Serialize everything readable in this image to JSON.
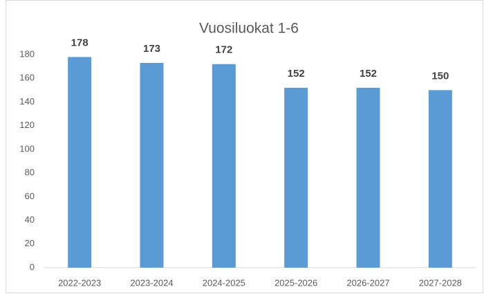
{
  "chart_data": {
    "type": "bar",
    "title": "Vuosiluokat 1-6",
    "categories": [
      "2022-2023",
      "2023-2024",
      "2024-2025",
      "2025-2026",
      "2026-2027",
      "2027-2028"
    ],
    "values": [
      178,
      173,
      172,
      152,
      152,
      150
    ],
    "color": "#5b9bd5",
    "ylim": [
      0,
      180
    ],
    "yticks": [
      0,
      20,
      40,
      60,
      80,
      100,
      120,
      140,
      160,
      180
    ],
    "grid": false
  }
}
